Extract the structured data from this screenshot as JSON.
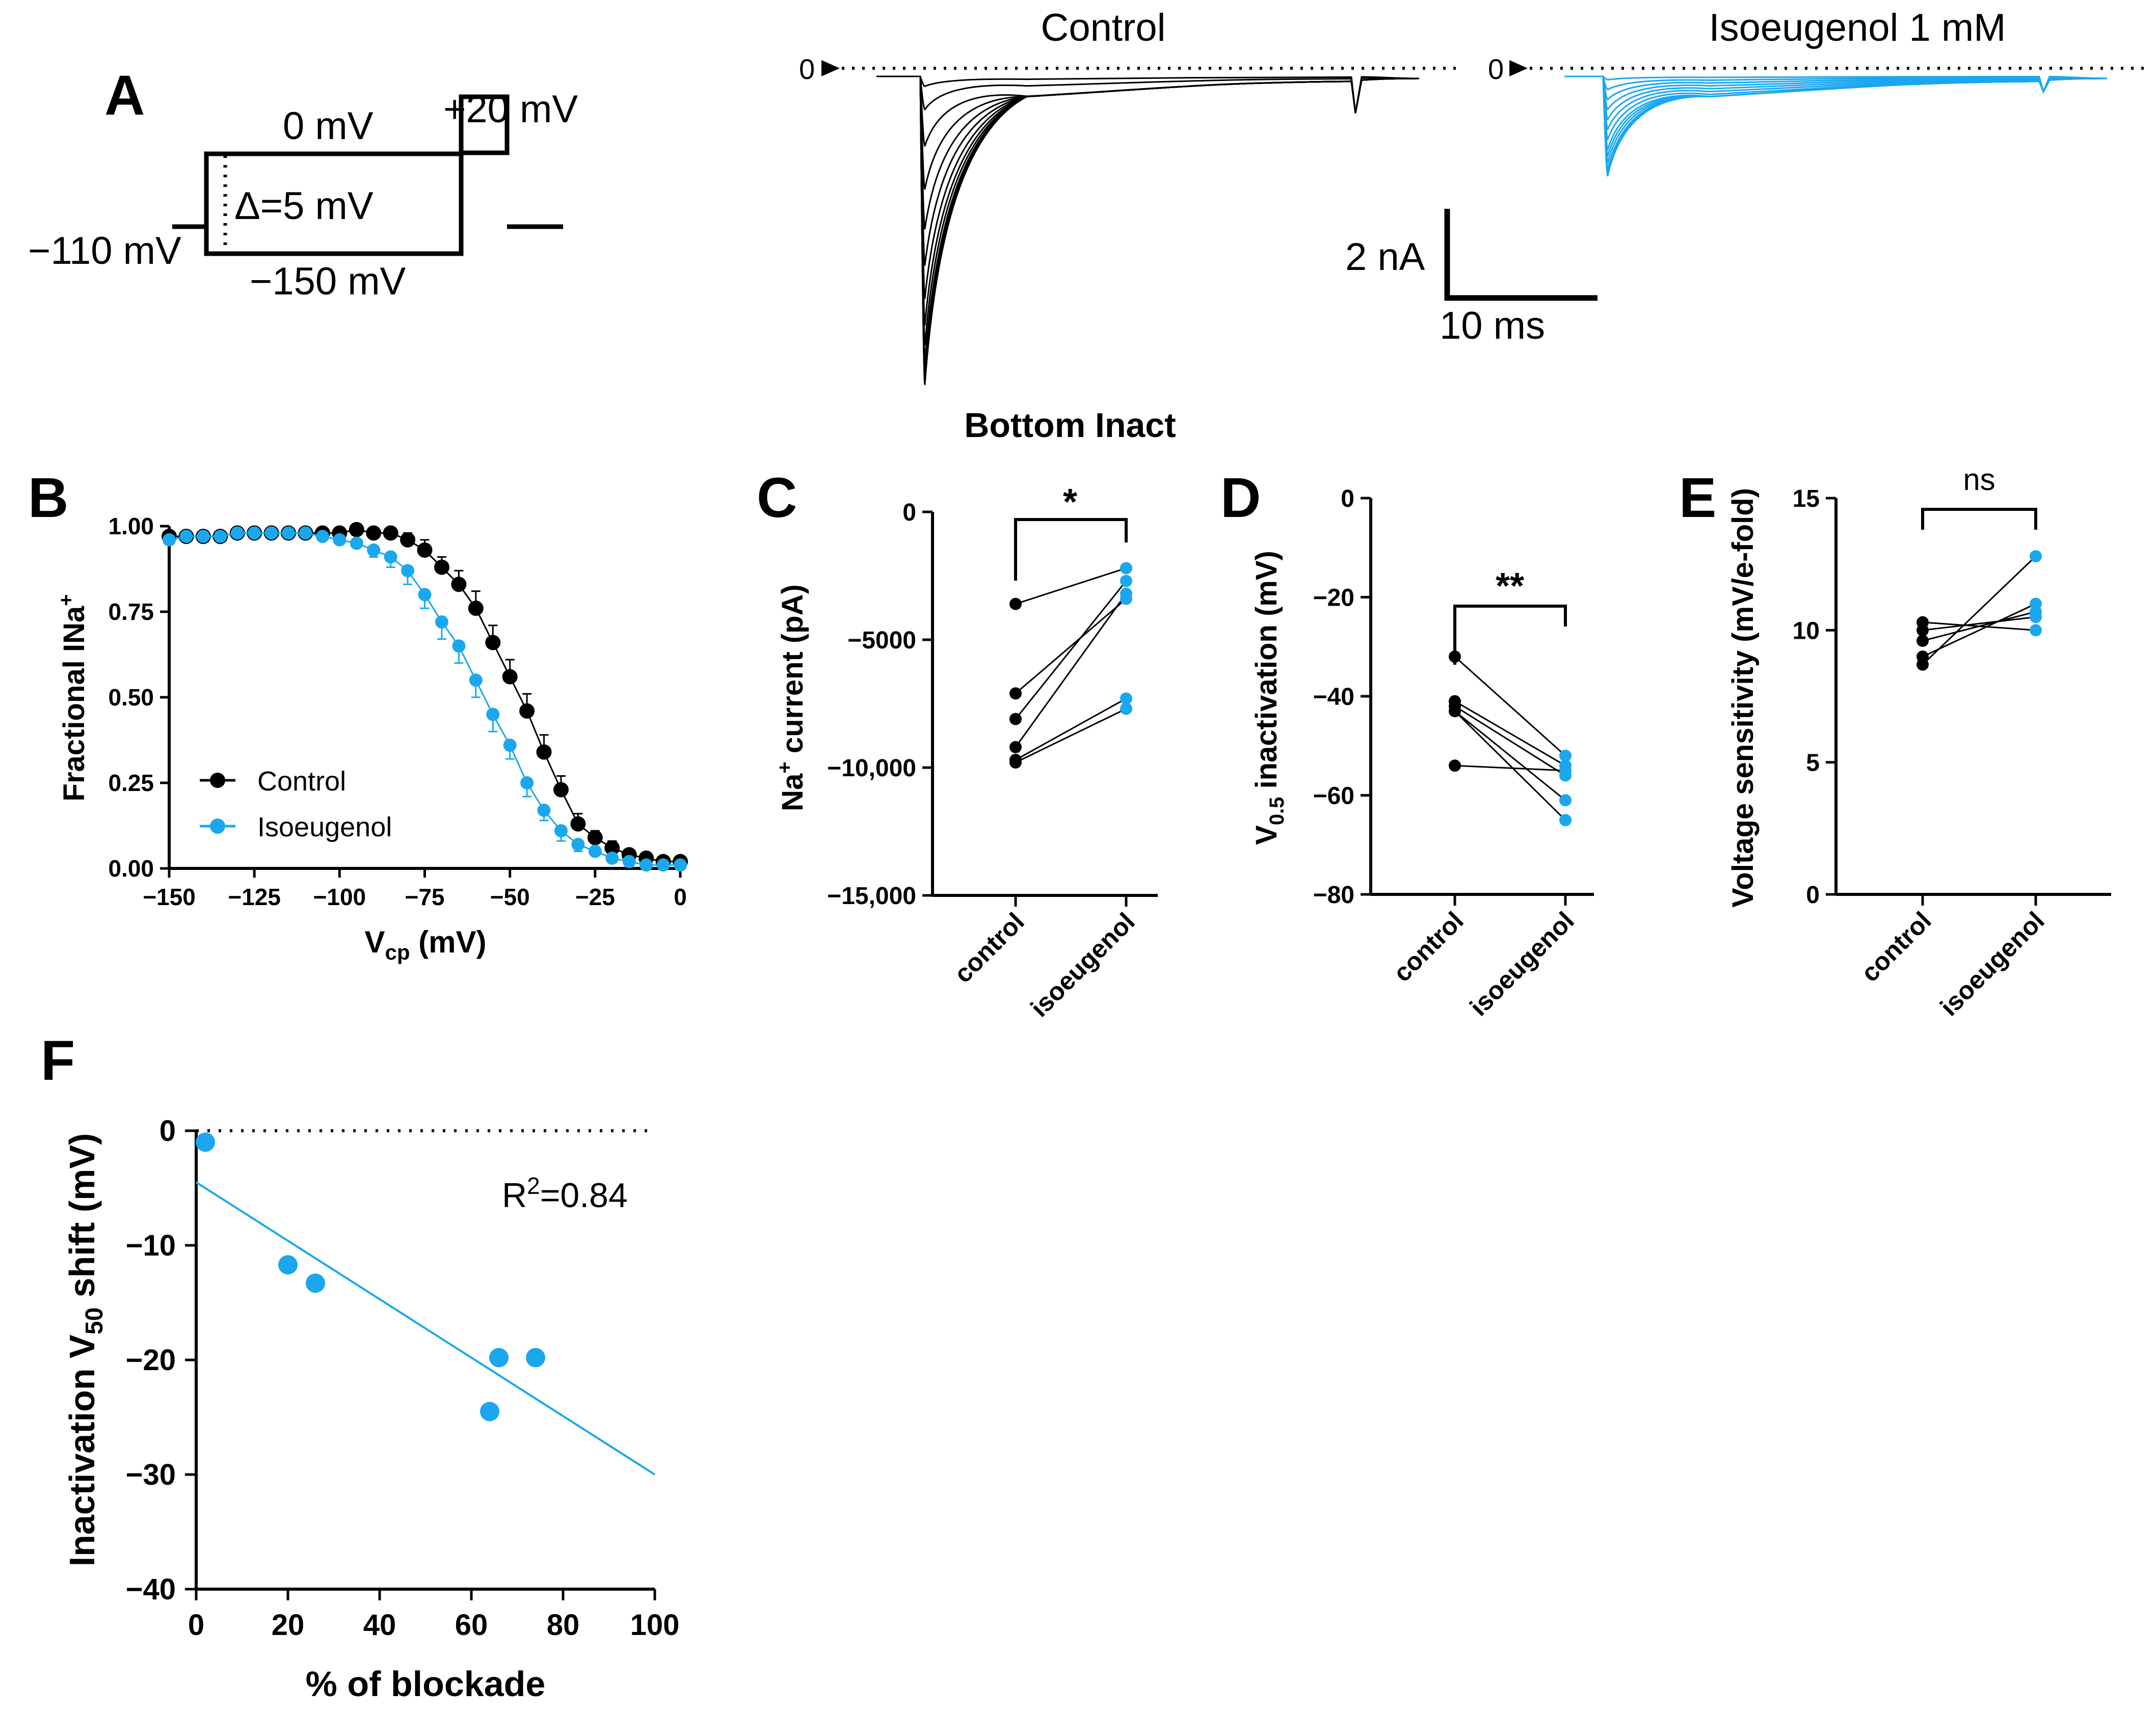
{
  "colors": {
    "control": "#000000",
    "isoeugenol": "#1aa7ee"
  },
  "panels": {
    "A": "A",
    "B": "B",
    "C": "C",
    "D": "D",
    "E": "E",
    "F": "F"
  },
  "protocol": {
    "holding": "−110 mV",
    "test": "0 mV",
    "step": "Δ=5 mV",
    "prepulse_min": "−150 mV",
    "pulse": "+20 mV"
  },
  "traces": {
    "control_title": "Control",
    "iso_title": "Isoeugenol 1 mM",
    "zero_label": "0",
    "scale_current": "2 nA",
    "scale_time": "10 ms",
    "control_peaks_nA": [
      0.3,
      1.0,
      2.1,
      3.4,
      4.6,
      5.7,
      6.7,
      7.5,
      8.1,
      8.6,
      8.9,
      9.1,
      9.2,
      9.3
    ],
    "iso_peaks_nA": [
      0.1,
      0.4,
      0.7,
      1.0,
      1.3,
      1.6,
      1.9,
      2.2,
      2.4,
      2.6,
      2.8,
      2.9,
      3.0
    ]
  },
  "chart_data": [
    {
      "id": "B",
      "type": "scatter",
      "title": "Bottom Inact",
      "xlabel": "V",
      "xlabel_sub": "cp",
      "xlabel_unit": " (mV)",
      "ylabel": "Fractional INa",
      "ylabel_sup": "+",
      "xlim": [
        -150,
        0
      ],
      "ylim": [
        0,
        1
      ],
      "xticks": [
        -150,
        -125,
        -100,
        -75,
        -50,
        -25,
        0
      ],
      "xtick_labels": [
        "−150",
        "−125",
        "−100",
        "−75",
        "−50",
        "−25",
        "0"
      ],
      "yticks": [
        0,
        0.25,
        0.5,
        0.75,
        1.0
      ],
      "ytick_labels": [
        "0.00",
        "0.25",
        "0.50",
        "0.75",
        "1.00"
      ],
      "legend": [
        "Control",
        "Isoeugenol"
      ],
      "x": [
        -150,
        -145,
        -140,
        -135,
        -130,
        -125,
        -120,
        -115,
        -110,
        -105,
        -100,
        -95,
        -90,
        -85,
        -80,
        -75,
        -70,
        -65,
        -60,
        -55,
        -50,
        -45,
        -40,
        -35,
        -30,
        -25,
        -20,
        -15,
        -10,
        -5,
        0
      ],
      "series": [
        {
          "name": "Control",
          "values": [
            0.97,
            0.97,
            0.97,
            0.97,
            0.98,
            0.98,
            0.98,
            0.98,
            0.98,
            0.98,
            0.98,
            0.99,
            0.98,
            0.98,
            0.96,
            0.93,
            0.88,
            0.83,
            0.76,
            0.66,
            0.56,
            0.46,
            0.34,
            0.23,
            0.13,
            0.09,
            0.06,
            0.04,
            0.03,
            0.02,
            0.02
          ],
          "err": [
            0.01,
            0.01,
            0.01,
            0.01,
            0.01,
            0.01,
            0.01,
            0.01,
            0.01,
            0.01,
            0.01,
            0.01,
            0.01,
            0.01,
            0.02,
            0.03,
            0.03,
            0.04,
            0.05,
            0.05,
            0.05,
            0.05,
            0.05,
            0.04,
            0.03,
            0.02,
            0.02,
            0.01,
            0.01,
            0.01,
            0.01
          ]
        },
        {
          "name": "Isoeugenol",
          "values": [
            0.96,
            0.97,
            0.97,
            0.97,
            0.98,
            0.98,
            0.98,
            0.98,
            0.98,
            0.97,
            0.96,
            0.95,
            0.93,
            0.91,
            0.87,
            0.8,
            0.72,
            0.65,
            0.55,
            0.45,
            0.36,
            0.25,
            0.17,
            0.11,
            0.07,
            0.05,
            0.03,
            0.02,
            0.01,
            0.01,
            0.01
          ],
          "err": [
            0.01,
            0.01,
            0.01,
            0.01,
            0.01,
            0.01,
            0.01,
            0.01,
            0.01,
            0.01,
            0.01,
            0.01,
            0.02,
            0.03,
            0.04,
            0.04,
            0.05,
            0.05,
            0.05,
            0.05,
            0.04,
            0.04,
            0.03,
            0.03,
            0.02,
            0.01,
            0.01,
            0.01,
            0.01,
            0.01,
            0.01
          ]
        }
      ]
    },
    {
      "id": "C",
      "type": "scatter",
      "ylabel": "current (pA)",
      "ylabel_prefix": "Na",
      "ylabel_sup": "+",
      "ylim": [
        -15000,
        0
      ],
      "yticks": [
        0,
        -5000,
        -10000,
        -15000
      ],
      "ytick_labels": [
        "0",
        "−5000",
        "−10,000",
        "−15,000"
      ],
      "categories": [
        "control",
        "isoeugenol"
      ],
      "significance": "*",
      "pairs": [
        [
          -3600,
          -2200
        ],
        [
          -7100,
          -3400
        ],
        [
          -8100,
          -2700
        ],
        [
          -9200,
          -3200
        ],
        [
          -9700,
          -7300
        ],
        [
          -9800,
          -7700
        ]
      ]
    },
    {
      "id": "D",
      "type": "scatter",
      "ylabel": "V",
      "ylabel_sub": "0.5",
      "ylabel_rest": " inactivation (mV)",
      "ylim": [
        -80,
        0
      ],
      "yticks": [
        0,
        -20,
        -40,
        -60,
        -80
      ],
      "ytick_labels": [
        "0",
        "−20",
        "−40",
        "−60",
        "−80"
      ],
      "categories": [
        "control",
        "isoeugenol"
      ],
      "significance": "**",
      "pairs": [
        [
          -32,
          -52
        ],
        [
          -41,
          -54
        ],
        [
          -42,
          -56
        ],
        [
          -43,
          -65
        ],
        [
          -43,
          -61
        ],
        [
          -54,
          -55
        ]
      ]
    },
    {
      "id": "E",
      "type": "scatter",
      "ylabel": "Voltage sensitivity (mV/e-fold)",
      "ylim": [
        0,
        15
      ],
      "yticks": [
        0,
        5,
        10,
        15
      ],
      "ytick_labels": [
        "0",
        "5",
        "10",
        "15"
      ],
      "categories": [
        "control",
        "isoeugenol"
      ],
      "significance": "ns",
      "pairs": [
        [
          10.3,
          10.0
        ],
        [
          10.0,
          10.5
        ],
        [
          9.6,
          10.7
        ],
        [
          9.0,
          11.0
        ],
        [
          8.7,
          12.8
        ]
      ]
    },
    {
      "id": "F",
      "type": "scatter",
      "xlabel": "% of blockade",
      "ylabel": "Inactivation V",
      "ylabel_sub": "50",
      "ylabel_rest": " shift (mV)",
      "xlim": [
        0,
        100
      ],
      "ylim": [
        -40,
        0
      ],
      "xticks": [
        0,
        20,
        40,
        60,
        80,
        100
      ],
      "xtick_labels": [
        "0",
        "20",
        "40",
        "60",
        "80",
        "100"
      ],
      "yticks": [
        0,
        -10,
        -20,
        -30,
        -40
      ],
      "ytick_labels": [
        "0",
        "−10",
        "−20",
        "−30",
        "−40"
      ],
      "points": [
        [
          2,
          -1
        ],
        [
          20,
          -11.7
        ],
        [
          26,
          -13.3
        ],
        [
          64,
          -24.5
        ],
        [
          66,
          -19.8
        ],
        [
          74,
          -19.8
        ]
      ],
      "fit": [
        [
          0,
          -4.5
        ],
        [
          100,
          -30
        ]
      ],
      "annotation": "=0.84",
      "annotation_prefix": "R",
      "annotation_sup": "2"
    }
  ]
}
